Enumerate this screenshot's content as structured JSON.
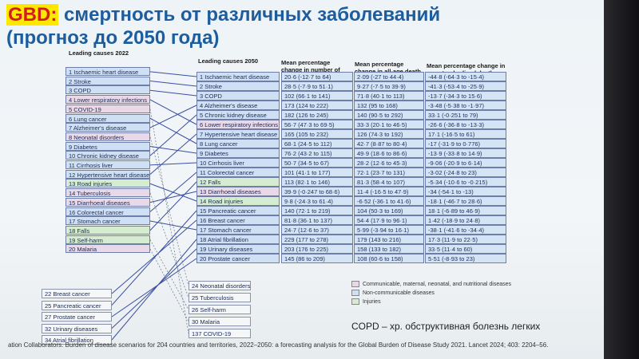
{
  "title": {
    "prefix": "GBD:",
    "line1": " смертность от различных заболеваний",
    "line2": "(прогноз до 2050 года)"
  },
  "headers": {
    "causes_2022": "Leading causes 2022",
    "causes_2050": "Leading causes 2050",
    "deaths": "Mean percentage change in number of deaths",
    "all_age": "Mean percentage change in all-age death rate",
    "age_std": "Mean percentage change in age-standardised death rate"
  },
  "colors": {
    "blue": "#cfe0f4",
    "pink": "#e9d8e7",
    "green": "#d6ecd0"
  },
  "causes_2022": [
    {
      "label": "1 Ischaemic heart disease",
      "type": "blue"
    },
    {
      "label": "2 Stroke",
      "type": "blue"
    },
    {
      "label": "3 COPD",
      "type": "blue"
    },
    {
      "label": "4 Lower respiratory infections",
      "type": "pink"
    },
    {
      "label": "5 COVID-19",
      "type": "pink"
    },
    {
      "label": "6 Lung cancer",
      "type": "blue"
    },
    {
      "label": "7 Alzheimer's disease",
      "type": "blue"
    },
    {
      "label": "8 Neonatal disorders",
      "type": "pink"
    },
    {
      "label": "9 Diabetes",
      "type": "blue"
    },
    {
      "label": "10 Chronic kidney disease",
      "type": "blue"
    },
    {
      "label": "11 Cirrhosis liver",
      "type": "blue"
    },
    {
      "label": "12 Hypertensive heart disease",
      "type": "blue"
    },
    {
      "label": "13 Road injuries",
      "type": "green"
    },
    {
      "label": "14 Tuberculosis",
      "type": "pink"
    },
    {
      "label": "15 Diarrhoeal diseases",
      "type": "pink"
    },
    {
      "label": "16 Colorectal cancer",
      "type": "blue"
    },
    {
      "label": "17 Stomach cancer",
      "type": "blue"
    },
    {
      "label": "18 Falls",
      "type": "green"
    },
    {
      "label": "19 Self-harm",
      "type": "green"
    },
    {
      "label": "20 Malaria",
      "type": "pink"
    }
  ],
  "causes_2022_extra": [
    "22 Breast cancer",
    "25 Pancreatic cancer",
    "27 Prostate cancer",
    "32 Urinary diseases",
    "34 Atrial fibrillation"
  ],
  "causes_2050": [
    {
      "label": "1 Ischaemic heart disease",
      "type": "blue",
      "deaths": "20·6 (-12·7 to 64)",
      "all_age": "2·09 (-27 to 44·4)",
      "age_std": "-44·8 (-64·3 to -15·4)"
    },
    {
      "label": "2 Stroke",
      "type": "blue",
      "deaths": "28·5 (-7·9 to 51·1)",
      "all_age": "9·27 (-7·5 to 39·9)",
      "age_std": "-41·3 (-53·4 to -25·9)"
    },
    {
      "label": "3 COPD",
      "type": "blue",
      "deaths": "102 (66·1 to 141)",
      "all_age": "71·8 (40·1 to 113)",
      "age_std": "-13·7 (-34·3 to 15·6)"
    },
    {
      "label": "4 Alzheimer's disease",
      "type": "blue",
      "deaths": "173 (124 to 222)",
      "all_age": "132 (95 to 168)",
      "age_std": "-3·48 (-5·38 to -1·97)"
    },
    {
      "label": "5 Chronic kidney disease",
      "type": "blue",
      "deaths": "182 (126 to 245)",
      "all_age": "140 (90·5 to 292)",
      "age_std": "33·1 (-0·251 to 79)"
    },
    {
      "label": "6 Lower respiratory infections",
      "type": "pink",
      "deaths": "56·7 (47·3 to 69·5)",
      "all_age": "33·3 (20·1 to 46·5)",
      "age_std": "-26·6 (-36·8 to -13·3)"
    },
    {
      "label": "7 Hypertensive heart disease",
      "type": "blue",
      "deaths": "165 (105 to 232)",
      "all_age": "126 (74·3 to 192)",
      "age_std": "17·1 (-16·5 to 61)"
    },
    {
      "label": "8 Lung cancer",
      "type": "blue",
      "deaths": "68·1 (24·5 to 112)",
      "all_age": "42·7 (8·87 to 80·4)",
      "age_std": "-17 (-31·9 to 0·776)"
    },
    {
      "label": "9 Diabetes",
      "type": "blue",
      "deaths": "76·2 (43·2 to 115)",
      "all_age": "49·9 (18·6 to 86·6)",
      "age_std": "-13·9 (-33·8 to 14·9)"
    },
    {
      "label": "10 Cirrhosis liver",
      "type": "blue",
      "deaths": "50·7 (34·5 to 67)",
      "all_age": "28·2 (12·6 to 45·3)",
      "age_std": "-9·06 (-20·9 to 6·14)"
    },
    {
      "label": "11 Colorectal cancer",
      "type": "blue",
      "deaths": "101 (41·1 to 177)",
      "all_age": "72·1 (23·7 to 131)",
      "age_std": "-3·02 (-24·8 to 23)"
    },
    {
      "label": "12 Falls",
      "type": "green",
      "deaths": "113 (82·1 to 146)",
      "all_age": "81·3 (58·4 to 107)",
      "age_std": "-5·34 (-10·6 to -0·215)"
    },
    {
      "label": "13 Diarrhoeal diseases",
      "type": "pink",
      "deaths": "39·9 (-0·247 to 68·6)",
      "all_age": "11·4 (-16·5 to 47·9)",
      "age_std": "-34 (-54·1 to -13)"
    },
    {
      "label": "14 Road injuries",
      "type": "green",
      "deaths": "9·8 (-24·3 to 61·4)",
      "all_age": "-6·52 (-36·1 to 41·6)",
      "age_std": "-18·1 (-46·7 to 28·6)"
    },
    {
      "label": "15 Pancreatic cancer",
      "type": "blue",
      "deaths": "140 (72·1 to 219)",
      "all_age": "104 (50·3 to 169)",
      "age_std": "18·1 (-6·89 to 46·9)"
    },
    {
      "label": "16 Breast cancer",
      "type": "blue",
      "deaths": "81·8 (36·1 to 137)",
      "all_age": "54·4 (17·9 to 96·1)",
      "age_std": "1·42 (-18·9 to 24·8)"
    },
    {
      "label": "17 Stomach cancer",
      "type": "blue",
      "deaths": "24·7 (12·6 to 37)",
      "all_age": "5·99 (-3·94 to 16·1)",
      "age_std": "-38·1 (-41·6 to -34·4)"
    },
    {
      "label": "18 Atrial fibrillation",
      "type": "blue",
      "deaths": "229 (177 to 278)",
      "all_age": "179 (143 to 216)",
      "age_std": "17·3 (11·9 to 22·5)"
    },
    {
      "label": "19 Urinary diseases",
      "type": "blue",
      "deaths": "203 (176 to 225)",
      "all_age": "158 (133 to 182)",
      "age_std": "33·5 (11·4 to 60)"
    },
    {
      "label": "20 Prostate cancer",
      "type": "blue",
      "deaths": "145 (86 to 209)",
      "all_age": "108 (60·6 to 158)",
      "age_std": "5·51 (-8·93 to 23)"
    }
  ],
  "causes_2050_extra": [
    "24 Neonatal disorders",
    "25 Tuberculosis",
    "26 Self-harm",
    "30 Malaria",
    "137 COVID-19"
  ],
  "legend": [
    {
      "label": "Communicable, maternal, neonatal, and nutritional diseases",
      "type": "pink"
    },
    {
      "label": "Non-communicable diseases",
      "type": "blue"
    },
    {
      "label": "Injuries",
      "type": "green"
    }
  ],
  "copd_note": "COPD – хр. обструктивная болезнь легких",
  "citation": "ation Collaborators. Burden of disease scenarios for 204 countries and territories, 2022–2050: a forecasting analysis for the Global Burden of Disease Study 2021. Lancet 2024; 403: 2204–56."
}
